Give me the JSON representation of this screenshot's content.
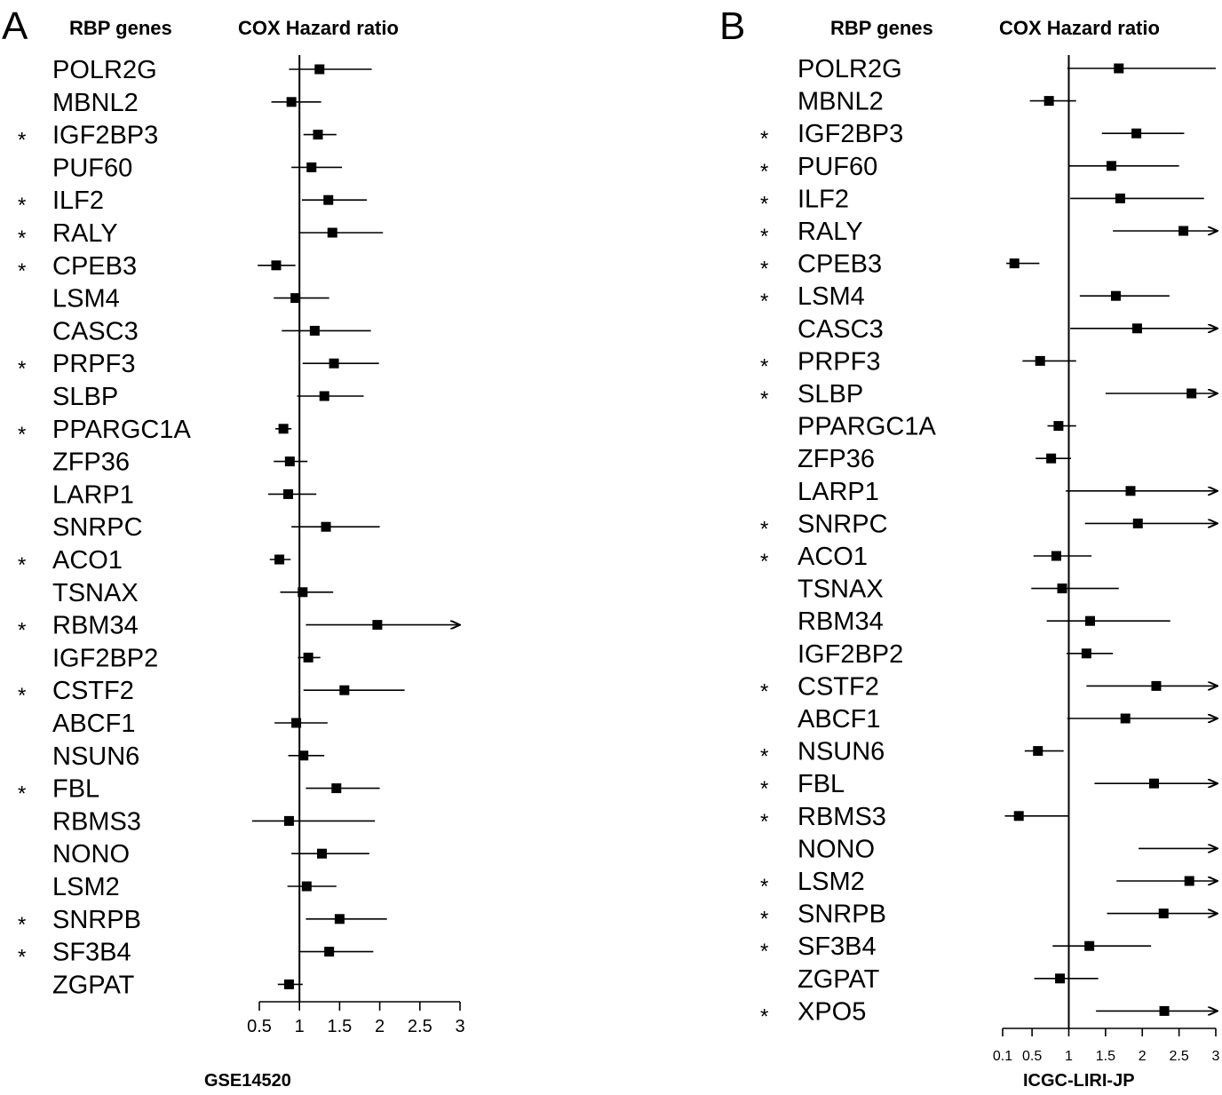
{
  "chart_data": [
    {
      "type": "forest",
      "panel_label": "A",
      "column_headers": {
        "genes": "RBP genes",
        "ratio": "COX Hazard ratio"
      },
      "xlabel": "GSE14520",
      "reference_line": 1,
      "xlim": [
        0.5,
        3
      ],
      "x_ticks": [
        0.5,
        1,
        1.5,
        2,
        2.5,
        3
      ],
      "x_tick_labels": [
        "0.5",
        "1",
        "1.5",
        "2",
        "2.5",
        "3"
      ],
      "rows": [
        {
          "gene": "POLR2G",
          "significant": false,
          "hr": 1.25,
          "lower": 0.87,
          "upper": 1.9,
          "arrow": false
        },
        {
          "gene": "MBNL2",
          "significant": false,
          "hr": 0.9,
          "lower": 0.65,
          "upper": 1.27,
          "arrow": false
        },
        {
          "gene": "IGF2BP3",
          "significant": true,
          "hr": 1.23,
          "lower": 1.05,
          "upper": 1.46,
          "arrow": false
        },
        {
          "gene": "PUF60",
          "significant": false,
          "hr": 1.15,
          "lower": 0.9,
          "upper": 1.53,
          "arrow": false
        },
        {
          "gene": "ILF2",
          "significant": true,
          "hr": 1.36,
          "lower": 1.03,
          "upper": 1.84,
          "arrow": false
        },
        {
          "gene": "RALY",
          "significant": true,
          "hr": 1.41,
          "lower": 0.99,
          "upper": 2.04,
          "arrow": false
        },
        {
          "gene": "CPEB3",
          "significant": true,
          "hr": 0.71,
          "lower": 0.48,
          "upper": 0.95,
          "arrow": false
        },
        {
          "gene": "LSM4",
          "significant": false,
          "hr": 0.95,
          "lower": 0.68,
          "upper": 1.37,
          "arrow": false
        },
        {
          "gene": "CASC3",
          "significant": false,
          "hr": 1.19,
          "lower": 0.78,
          "upper": 1.89,
          "arrow": false
        },
        {
          "gene": "PRPF3",
          "significant": true,
          "hr": 1.43,
          "lower": 1.04,
          "upper": 1.99,
          "arrow": false
        },
        {
          "gene": "SLBP",
          "significant": false,
          "hr": 1.31,
          "lower": 0.97,
          "upper": 1.8,
          "arrow": false
        },
        {
          "gene": "PPARGC1A",
          "significant": true,
          "hr": 0.8,
          "lower": 0.7,
          "upper": 0.9,
          "arrow": false
        },
        {
          "gene": "ZFP36",
          "significant": false,
          "hr": 0.88,
          "lower": 0.68,
          "upper": 1.1,
          "arrow": false
        },
        {
          "gene": "LARP1",
          "significant": false,
          "hr": 0.86,
          "lower": 0.61,
          "upper": 1.21,
          "arrow": false
        },
        {
          "gene": "SNRPC",
          "significant": false,
          "hr": 1.33,
          "lower": 0.9,
          "upper": 2.0,
          "arrow": false
        },
        {
          "gene": "ACO1",
          "significant": true,
          "hr": 0.75,
          "lower": 0.63,
          "upper": 0.89,
          "arrow": false
        },
        {
          "gene": "TSNAX",
          "significant": false,
          "hr": 1.04,
          "lower": 0.76,
          "upper": 1.42,
          "arrow": false
        },
        {
          "gene": "RBM34",
          "significant": true,
          "hr": 1.97,
          "lower": 1.08,
          "upper": 3.0,
          "arrow": true
        },
        {
          "gene": "IGF2BP2",
          "significant": false,
          "hr": 1.11,
          "lower": 0.98,
          "upper": 1.26,
          "arrow": false
        },
        {
          "gene": "CSTF2",
          "significant": true,
          "hr": 1.56,
          "lower": 1.05,
          "upper": 2.31,
          "arrow": false
        },
        {
          "gene": "ABCF1",
          "significant": false,
          "hr": 0.96,
          "lower": 0.69,
          "upper": 1.35,
          "arrow": false
        },
        {
          "gene": "NSUN6",
          "significant": false,
          "hr": 1.05,
          "lower": 0.86,
          "upper": 1.31,
          "arrow": false
        },
        {
          "gene": "FBL",
          "significant": true,
          "hr": 1.46,
          "lower": 1.08,
          "upper": 2.0,
          "arrow": false
        },
        {
          "gene": "RBMS3",
          "significant": false,
          "hr": 0.87,
          "lower": 0.41,
          "upper": 1.94,
          "arrow": false
        },
        {
          "gene": "NONO",
          "significant": false,
          "hr": 1.28,
          "lower": 0.9,
          "upper": 1.87,
          "arrow": false
        },
        {
          "gene": "LSM2",
          "significant": false,
          "hr": 1.09,
          "lower": 0.85,
          "upper": 1.46,
          "arrow": false
        },
        {
          "gene": "SNRPB",
          "significant": true,
          "hr": 1.5,
          "lower": 1.08,
          "upper": 2.09,
          "arrow": false
        },
        {
          "gene": "SF3B4",
          "significant": true,
          "hr": 1.37,
          "lower": 0.99,
          "upper": 1.92,
          "arrow": false
        },
        {
          "gene": "ZGPAT",
          "significant": false,
          "hr": 0.87,
          "lower": 0.73,
          "upper": 1.04,
          "arrow": false
        }
      ]
    },
    {
      "type": "forest",
      "panel_label": "B",
      "column_headers": {
        "genes": "RBP genes",
        "ratio": "COX Hazard ratio"
      },
      "xlabel": "ICGC-LIRI-JP",
      "reference_line": 1,
      "xlim": [
        0.1,
        3
      ],
      "x_ticks": [
        0.1,
        0.5,
        1,
        1.5,
        2,
        2.5,
        3
      ],
      "x_tick_labels": [
        "0.1",
        "0.5",
        "1",
        "1.5",
        "2",
        "2.5",
        "3"
      ],
      "rows": [
        {
          "gene": "POLR2G",
          "significant": false,
          "hr": 1.68,
          "lower": 0.98,
          "upper": 3.0,
          "arrow": false
        },
        {
          "gene": "MBNL2",
          "significant": false,
          "hr": 0.73,
          "lower": 0.47,
          "upper": 1.1,
          "arrow": false
        },
        {
          "gene": "IGF2BP3",
          "significant": true,
          "hr": 1.92,
          "lower": 1.45,
          "upper": 2.57,
          "arrow": false
        },
        {
          "gene": "PUF60",
          "significant": true,
          "hr": 1.58,
          "lower": 1.0,
          "upper": 2.5,
          "arrow": false
        },
        {
          "gene": "ILF2",
          "significant": true,
          "hr": 1.7,
          "lower": 1.02,
          "upper": 2.84,
          "arrow": false
        },
        {
          "gene": "RALY",
          "significant": true,
          "hr": 2.56,
          "lower": 1.6,
          "upper": 3.0,
          "arrow": true
        },
        {
          "gene": "CPEB3",
          "significant": true,
          "hr": 0.26,
          "lower": 0.15,
          "upper": 0.6,
          "arrow": false
        },
        {
          "gene": "LSM4",
          "significant": true,
          "hr": 1.64,
          "lower": 1.15,
          "upper": 2.37,
          "arrow": false
        },
        {
          "gene": "CASC3",
          "significant": false,
          "hr": 1.93,
          "lower": 1.02,
          "upper": 3.0,
          "arrow": true
        },
        {
          "gene": "PRPF3",
          "significant": true,
          "hr": 0.61,
          "lower": 0.37,
          "upper": 1.1,
          "arrow": false
        },
        {
          "gene": "SLBP",
          "significant": true,
          "hr": 2.67,
          "lower": 1.5,
          "upper": 3.0,
          "arrow": true
        },
        {
          "gene": "PPARGC1A",
          "significant": false,
          "hr": 0.86,
          "lower": 0.71,
          "upper": 1.1,
          "arrow": false
        },
        {
          "gene": "ZFP36",
          "significant": false,
          "hr": 0.76,
          "lower": 0.55,
          "upper": 1.03,
          "arrow": false
        },
        {
          "gene": "LARP1",
          "significant": false,
          "hr": 1.84,
          "lower": 0.96,
          "upper": 3.0,
          "arrow": true
        },
        {
          "gene": "SNRPC",
          "significant": true,
          "hr": 1.94,
          "lower": 1.22,
          "upper": 3.0,
          "arrow": true
        },
        {
          "gene": "ACO1",
          "significant": true,
          "hr": 0.83,
          "lower": 0.52,
          "upper": 1.31,
          "arrow": false
        },
        {
          "gene": "TSNAX",
          "significant": false,
          "hr": 0.91,
          "lower": 0.49,
          "upper": 1.68,
          "arrow": false
        },
        {
          "gene": "RBM34",
          "significant": false,
          "hr": 1.29,
          "lower": 0.7,
          "upper": 2.38,
          "arrow": false
        },
        {
          "gene": "IGF2BP2",
          "significant": false,
          "hr": 1.24,
          "lower": 0.97,
          "upper": 1.6,
          "arrow": false
        },
        {
          "gene": "CSTF2",
          "significant": true,
          "hr": 2.19,
          "lower": 1.24,
          "upper": 3.0,
          "arrow": true
        },
        {
          "gene": "ABCF1",
          "significant": false,
          "hr": 1.77,
          "lower": 0.98,
          "upper": 3.0,
          "arrow": true
        },
        {
          "gene": "NSUN6",
          "significant": true,
          "hr": 0.58,
          "lower": 0.4,
          "upper": 0.93,
          "arrow": false
        },
        {
          "gene": "FBL",
          "significant": true,
          "hr": 2.16,
          "lower": 1.35,
          "upper": 3.0,
          "arrow": true
        },
        {
          "gene": "RBMS3",
          "significant": true,
          "hr": 0.32,
          "lower": 0.13,
          "upper": 1.0,
          "arrow": false
        },
        {
          "gene": "NONO",
          "significant": false,
          "hr": null,
          "lower": 1.95,
          "upper": 3.0,
          "arrow": true
        },
        {
          "gene": "LSM2",
          "significant": true,
          "hr": 2.64,
          "lower": 1.65,
          "upper": 3.0,
          "arrow": true
        },
        {
          "gene": "SNRPB",
          "significant": true,
          "hr": 2.29,
          "lower": 1.52,
          "upper": 3.0,
          "arrow": true
        },
        {
          "gene": "SF3B4",
          "significant": true,
          "hr": 1.28,
          "lower": 0.78,
          "upper": 2.12,
          "arrow": false
        },
        {
          "gene": "ZGPAT",
          "significant": false,
          "hr": 0.88,
          "lower": 0.53,
          "upper": 1.4,
          "arrow": false
        },
        {
          "gene": "XPO5",
          "significant": true,
          "hr": 2.3,
          "lower": 1.37,
          "upper": 3.0,
          "arrow": true
        }
      ]
    }
  ],
  "significance_marker": "*"
}
